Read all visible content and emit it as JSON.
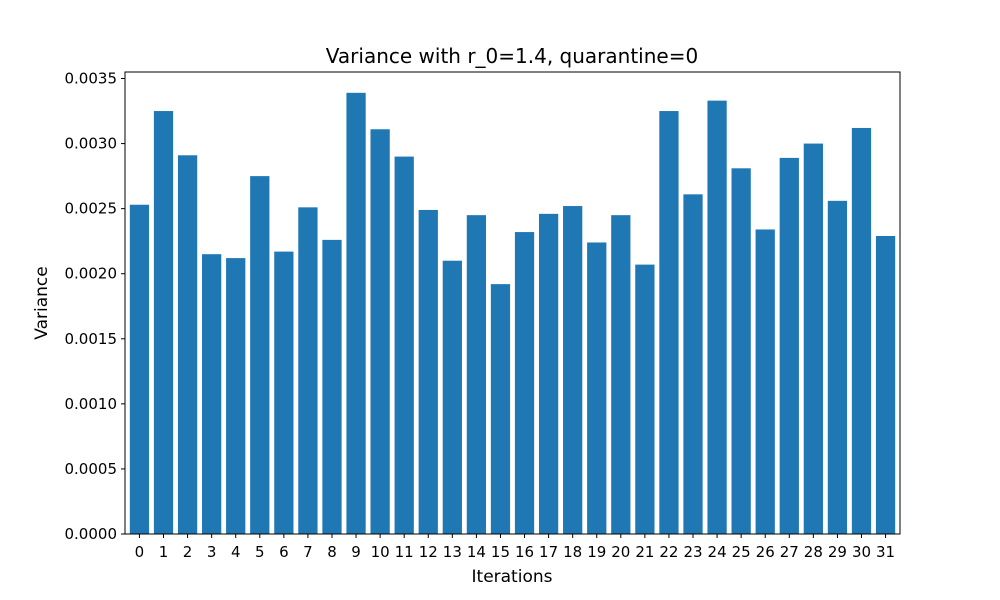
{
  "chart_data": {
    "type": "bar",
    "title": "Variance with r_0=1.4, quarantine=0",
    "xlabel": "Iterations",
    "ylabel": "Variance",
    "categories": [
      "0",
      "1",
      "2",
      "3",
      "4",
      "5",
      "6",
      "7",
      "8",
      "9",
      "10",
      "11",
      "12",
      "13",
      "14",
      "15",
      "16",
      "17",
      "18",
      "19",
      "20",
      "21",
      "22",
      "23",
      "24",
      "25",
      "26",
      "27",
      "28",
      "29",
      "30",
      "31"
    ],
    "values": [
      0.00253,
      0.00325,
      0.00291,
      0.00215,
      0.00212,
      0.00275,
      0.00217,
      0.00251,
      0.00226,
      0.00339,
      0.00311,
      0.0029,
      0.00249,
      0.0021,
      0.00245,
      0.00192,
      0.00232,
      0.00246,
      0.00252,
      0.00224,
      0.00245,
      0.00207,
      0.00325,
      0.00261,
      0.00333,
      0.00281,
      0.00234,
      0.00289,
      0.003,
      0.00256,
      0.00312,
      0.00229
    ],
    "ylim": [
      0,
      0.00355
    ],
    "yticks": [
      "0.0000",
      "0.0005",
      "0.0010",
      "0.0015",
      "0.0020",
      "0.0025",
      "0.0030",
      "0.0035"
    ],
    "grid": false,
    "bar_color": "#1f77b4"
  }
}
